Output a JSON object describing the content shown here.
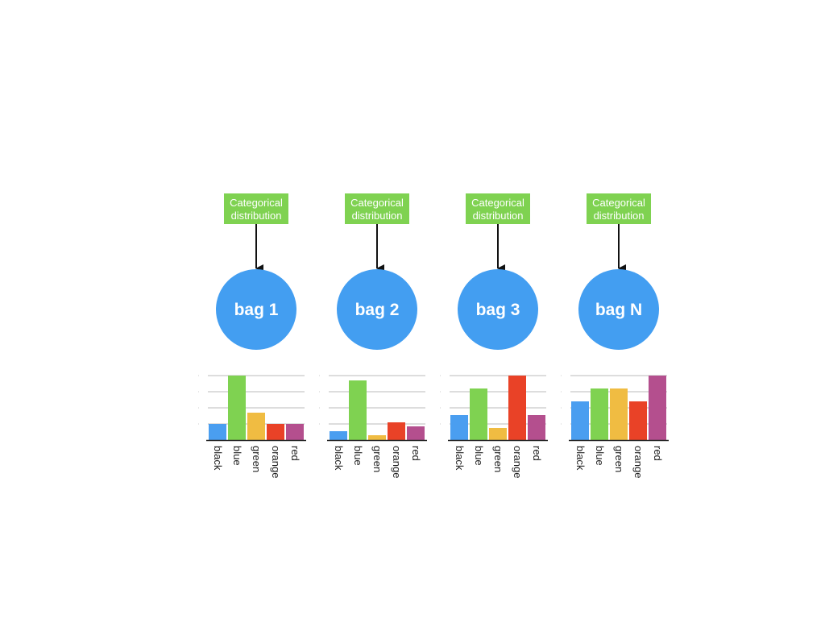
{
  "distribution_label": [
    "Categorical",
    "distribution"
  ],
  "categories": [
    "black",
    "blue",
    "green",
    "orange",
    "red"
  ],
  "colors": {
    "black": "#4a9ef0",
    "blue": "#7fd251",
    "green": "#f0bc42",
    "orange": "#e94227",
    "red": "#b44f8e",
    "label_box": "#7fd251",
    "bag_circle": "#439ef1",
    "arrow": "#111111",
    "gridline": "#bbbbbb",
    "axis": "#222222"
  },
  "bags": [
    {
      "name": "bag 1",
      "values": [
        1,
        4,
        1.7,
        1,
        1
      ]
    },
    {
      "name": "bag 2",
      "values": [
        0.55,
        3.7,
        0.3,
        1.1,
        0.85
      ]
    },
    {
      "name": "bag 3",
      "values": [
        1.55,
        3.2,
        0.75,
        4,
        1.55
      ]
    },
    {
      "name": "bag N",
      "values": [
        2.4,
        3.2,
        3.2,
        2.4,
        4
      ]
    }
  ],
  "chart_data": [
    {
      "type": "bar",
      "categories": [
        "black",
        "blue",
        "green",
        "orange",
        "red"
      ],
      "values": [
        1,
        4,
        1.7,
        1,
        1
      ],
      "ylim": [
        0,
        4
      ],
      "grid": true
    },
    {
      "type": "bar",
      "categories": [
        "black",
        "blue",
        "green",
        "orange",
        "red"
      ],
      "values": [
        0.55,
        3.7,
        0.3,
        1.1,
        0.85
      ],
      "ylim": [
        0,
        4
      ],
      "grid": true
    },
    {
      "type": "bar",
      "categories": [
        "black",
        "blue",
        "green",
        "orange",
        "red"
      ],
      "values": [
        1.55,
        3.2,
        0.75,
        4,
        1.55
      ],
      "ylim": [
        0,
        4
      ],
      "grid": true
    },
    {
      "type": "bar",
      "categories": [
        "black",
        "blue",
        "green",
        "orange",
        "red"
      ],
      "values": [
        2.4,
        3.2,
        3.2,
        2.4,
        4
      ],
      "ylim": [
        0,
        4
      ],
      "grid": true
    }
  ]
}
